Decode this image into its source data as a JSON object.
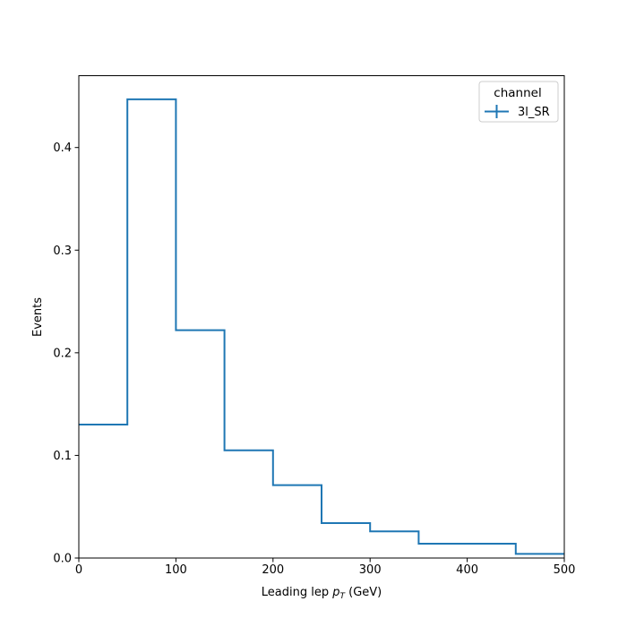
{
  "chart_data": {
    "type": "step",
    "xlabel": "Leading lep p_T (GeV)",
    "xlabel_parts": {
      "main": "Leading lep ",
      "p": "p",
      "sub": "T",
      "unit": " (GeV)"
    },
    "ylabel": "Events",
    "xlim": [
      0,
      500
    ],
    "ylim": [
      0,
      0.47
    ],
    "x_ticks": [
      0,
      100,
      200,
      300,
      400,
      500
    ],
    "x_tick_labels": [
      "0",
      "100",
      "200",
      "300",
      "400",
      "500"
    ],
    "y_ticks": [
      0.0,
      0.1,
      0.2,
      0.3,
      0.4
    ],
    "y_tick_labels": [
      "0.0",
      "0.1",
      "0.2",
      "0.3",
      "0.4"
    ],
    "bin_edges": [
      0,
      50,
      100,
      150,
      200,
      250,
      300,
      350,
      400,
      450,
      500
    ],
    "series": [
      {
        "name": "3l_SR",
        "color": "#1f77b4",
        "values": [
          0.13,
          0.447,
          0.222,
          0.105,
          0.071,
          0.034,
          0.026,
          0.014,
          0.014,
          0.004
        ]
      }
    ],
    "legend": {
      "title": "channel",
      "placement": "upper right"
    },
    "grid": false
  }
}
